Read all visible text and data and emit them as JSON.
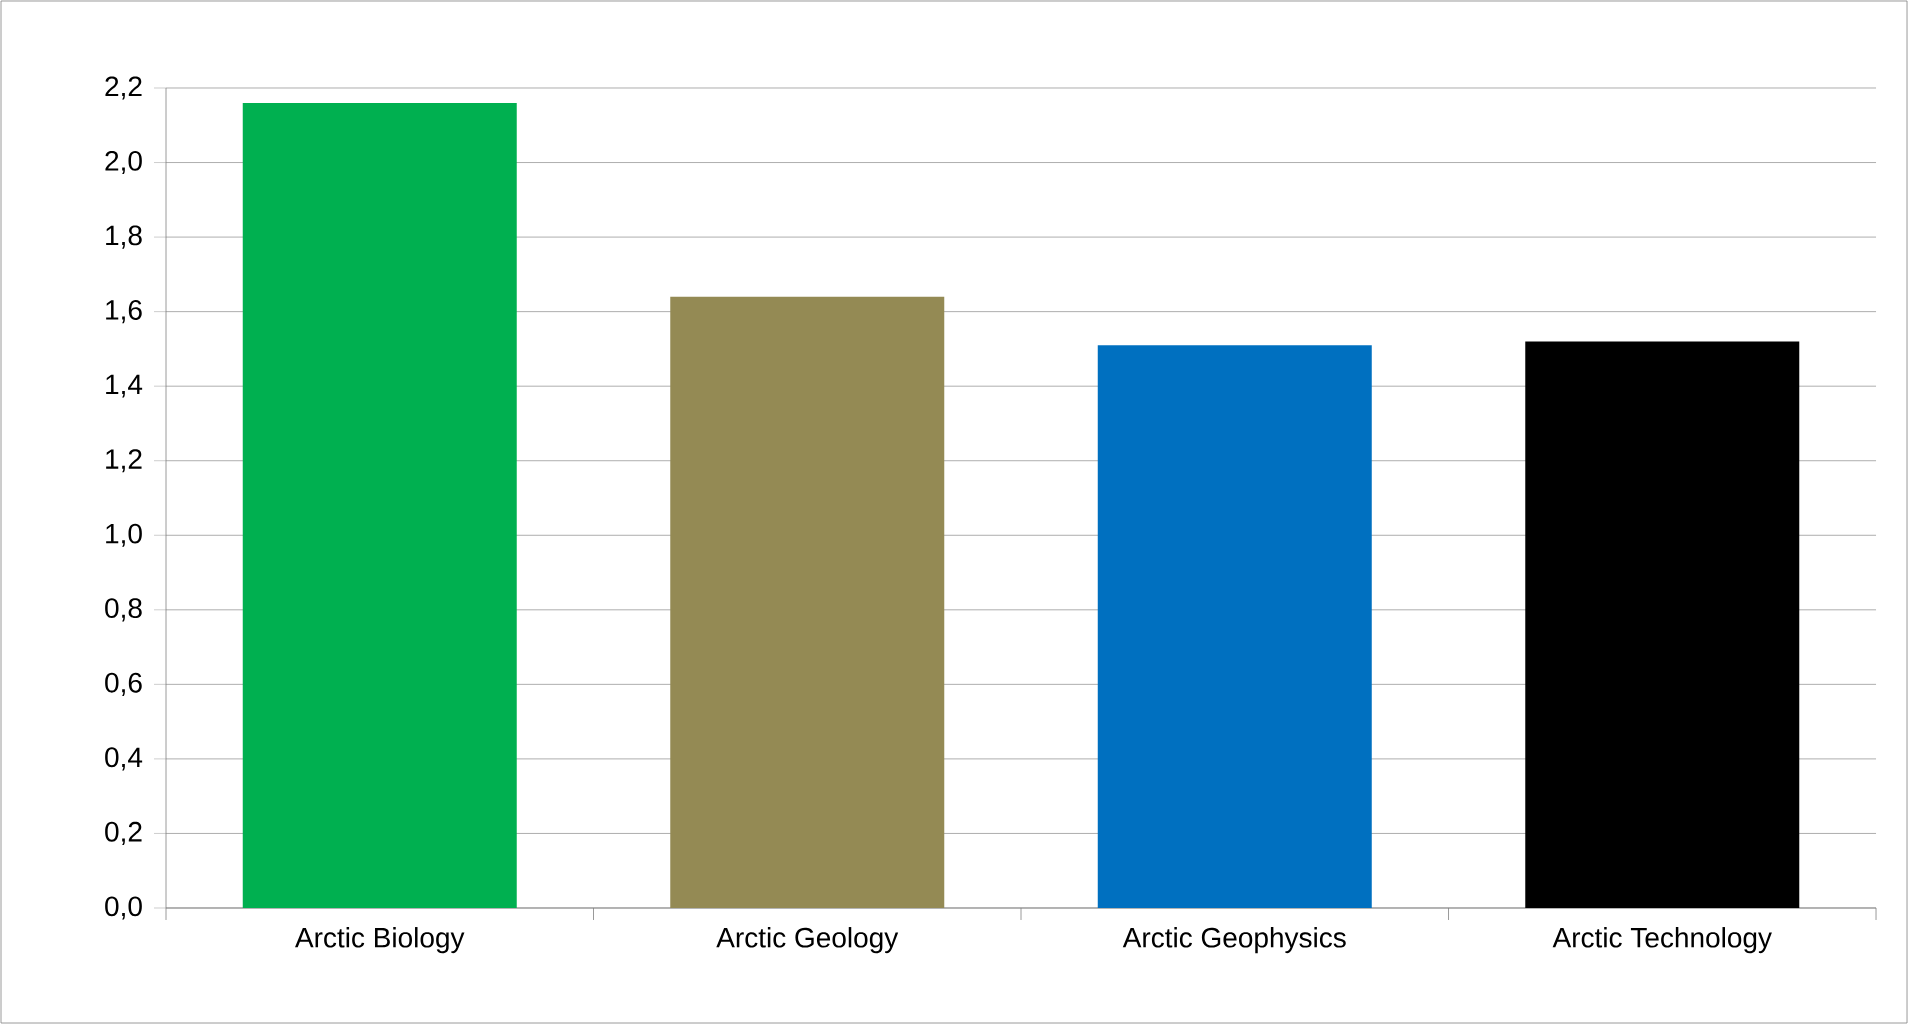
{
  "chart_data": {
    "type": "bar",
    "categories": [
      "Arctic Biology",
      "Arctic Geology",
      "Arctic Geophysics",
      "Arctic Technology"
    ],
    "values": [
      2.16,
      1.64,
      1.51,
      1.52
    ],
    "colors": [
      "#00b050",
      "#948a54",
      "#0070c0",
      "#000000"
    ],
    "ylim": [
      0,
      2.2
    ],
    "yticks": [
      {
        "value": 0,
        "label": "0,0"
      },
      {
        "value": 0.2,
        "label": "0,2"
      },
      {
        "value": 0.4,
        "label": "0,4"
      },
      {
        "value": 0.6,
        "label": "0,6"
      },
      {
        "value": 0.8,
        "label": "0,8"
      },
      {
        "value": 1.0,
        "label": "1,0"
      },
      {
        "value": 1.2,
        "label": "1,2"
      },
      {
        "value": 1.4,
        "label": "1,4"
      },
      {
        "value": 1.6,
        "label": "1,6"
      },
      {
        "value": 1.8,
        "label": "1,8"
      },
      {
        "value": 2.0,
        "label": "2,0"
      },
      {
        "value": 2.2,
        "label": "2,2"
      }
    ],
    "grid": "y"
  }
}
